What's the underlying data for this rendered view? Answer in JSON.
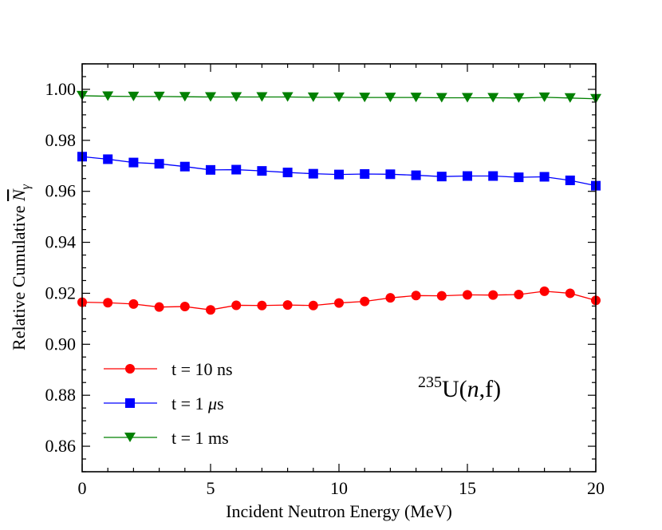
{
  "chart_data": {
    "type": "line",
    "title": "",
    "xlabel": "Incident Neutron Energy (MeV)",
    "ylabel": {
      "main": "Relative Cumulative ",
      "symbol": "N",
      "subscript": "γ"
    },
    "xlim": [
      0,
      20
    ],
    "ylim": [
      0.85,
      1.01
    ],
    "x_ticks": [
      0,
      5,
      10,
      15,
      20
    ],
    "x_tick_labels": [
      "0",
      "5",
      "10",
      "15",
      "20"
    ],
    "y_ticks": [
      0.86,
      0.88,
      0.9,
      0.92,
      0.94,
      0.96,
      0.98,
      1.0
    ],
    "y_tick_labels": [
      "0.86",
      "0.88",
      "0.90",
      "0.92",
      "0.94",
      "0.96",
      "0.98",
      "1.00"
    ],
    "grid": false,
    "legend_position": "bottom-left",
    "x": [
      0,
      1,
      2,
      3,
      4,
      5,
      6,
      7,
      8,
      9,
      10,
      11,
      12,
      13,
      14,
      15,
      16,
      17,
      18,
      19,
      20
    ],
    "series": [
      {
        "name": "t = 10 ns",
        "label_prefix": "t = 10 ns",
        "label_italic": "",
        "label_suffix": "",
        "color": "#ff0000",
        "marker": "circle",
        "values": [
          0.9165,
          0.9163,
          0.9158,
          0.9146,
          0.9148,
          0.9135,
          0.9153,
          0.9152,
          0.9154,
          0.9152,
          0.9162,
          0.9168,
          0.9182,
          0.9191,
          0.919,
          0.9194,
          0.9193,
          0.9195,
          0.9208,
          0.92,
          0.9172
        ]
      },
      {
        "name": "t = 1 μs",
        "label_prefix": "t = 1 ",
        "label_italic": "μ",
        "label_suffix": "s",
        "color": "#0000ff",
        "marker": "square",
        "values": [
          0.9736,
          0.9726,
          0.9713,
          0.9708,
          0.9697,
          0.9684,
          0.9685,
          0.968,
          0.9674,
          0.9669,
          0.9666,
          0.9668,
          0.9667,
          0.9663,
          0.9658,
          0.966,
          0.966,
          0.9655,
          0.9657,
          0.9643,
          0.9622
        ]
      },
      {
        "name": "t = 1 ms",
        "label_prefix": "t = 1 ms",
        "label_italic": "",
        "label_suffix": "",
        "color": "#008000",
        "marker": "triangle-down",
        "values": [
          0.9975,
          0.9973,
          0.9972,
          0.9972,
          0.9971,
          0.997,
          0.997,
          0.997,
          0.997,
          0.9969,
          0.9969,
          0.9968,
          0.9968,
          0.9968,
          0.9967,
          0.9967,
          0.9967,
          0.9966,
          0.9969,
          0.9966,
          0.9963
        ]
      }
    ],
    "annotation": {
      "superscript": "235",
      "element": "U(",
      "italic": "n",
      "suffix": ",f)"
    }
  }
}
